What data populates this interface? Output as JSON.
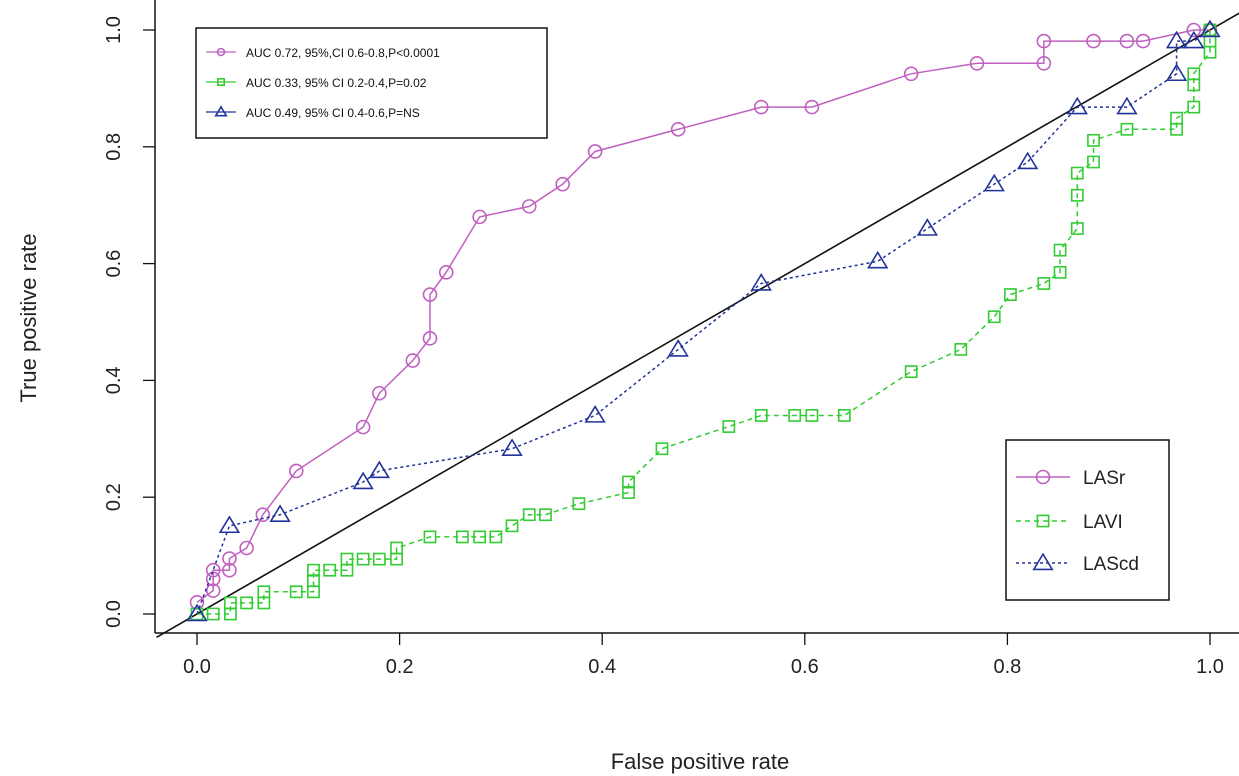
{
  "chart_data": {
    "type": "line",
    "title": "",
    "xlabel": "False positive rate",
    "ylabel": "True positive rate",
    "xlim": [
      0,
      1
    ],
    "ylim": [
      0,
      1
    ],
    "x_ticks": [
      "0.0",
      "0.2",
      "0.4",
      "0.6",
      "0.8",
      "1.0"
    ],
    "y_ticks": [
      "0.0",
      "0.2",
      "0.4",
      "0.6",
      "0.8",
      "1.0"
    ],
    "grid": false,
    "reference_line": {
      "x": [
        0,
        1
      ],
      "y": [
        0,
        1
      ],
      "color": "#111111"
    },
    "auc_box": {
      "placement": "top-left",
      "entries": [
        {
          "label": "AUC 0.72, 95%,CI 0.6-0.8,P<0.0001",
          "color": "#c060c0",
          "marker": "circle"
        },
        {
          "label": "AUC 0.33, 95% CI 0.2-0.4,P=0.02",
          "color": "#33cc33",
          "marker": "square"
        },
        {
          "label": "AUC 0.49, 95% CI 0.4-0.6,P=NS",
          "color": "#223399",
          "marker": "triangle"
        }
      ]
    },
    "legend": {
      "placement": "bottom-right",
      "entries": [
        {
          "label": "LASr",
          "color": "#c060c0",
          "marker": "circle",
          "dash": "solid"
        },
        {
          "label": "LAVI",
          "color": "#33cc33",
          "marker": "square",
          "dash": "dashed"
        },
        {
          "label": "LAScd",
          "color": "#223399",
          "marker": "triangle",
          "dash": "dotted"
        }
      ]
    },
    "series": [
      {
        "name": "LASr",
        "color": "#c060c0",
        "marker": "circle",
        "dash": "solid",
        "points": [
          [
            0,
            0.02
          ],
          [
            0.016,
            0.04
          ],
          [
            0.016,
            0.06
          ],
          [
            0.016,
            0.075
          ],
          [
            0.032,
            0.075
          ],
          [
            0.032,
            0.095
          ],
          [
            0.049,
            0.113
          ],
          [
            0.065,
            0.17
          ],
          [
            0.098,
            0.245
          ],
          [
            0.164,
            0.32
          ],
          [
            0.18,
            0.378
          ],
          [
            0.213,
            0.434
          ],
          [
            0.23,
            0.472
          ],
          [
            0.23,
            0.547
          ],
          [
            0.246,
            0.585
          ],
          [
            0.279,
            0.68
          ],
          [
            0.328,
            0.698
          ],
          [
            0.361,
            0.736
          ],
          [
            0.393,
            0.792
          ],
          [
            0.475,
            0.83
          ],
          [
            0.557,
            0.868
          ],
          [
            0.607,
            0.868
          ],
          [
            0.705,
            0.925
          ],
          [
            0.77,
            0.943
          ],
          [
            0.836,
            0.943
          ],
          [
            0.836,
            0.981
          ],
          [
            0.885,
            0.981
          ],
          [
            0.918,
            0.981
          ],
          [
            0.934,
            0.981
          ],
          [
            0.984,
            1.0
          ],
          [
            1.0,
            1.0
          ]
        ]
      },
      {
        "name": "LAVI",
        "color": "#33cc33",
        "marker": "square",
        "dash": "dashed",
        "points": [
          [
            0,
            0
          ],
          [
            0.016,
            0
          ],
          [
            0.033,
            0
          ],
          [
            0.033,
            0.019
          ],
          [
            0.049,
            0.019
          ],
          [
            0.066,
            0.019
          ],
          [
            0.066,
            0.038
          ],
          [
            0.098,
            0.038
          ],
          [
            0.115,
            0.038
          ],
          [
            0.115,
            0.057
          ],
          [
            0.115,
            0.075
          ],
          [
            0.131,
            0.075
          ],
          [
            0.148,
            0.075
          ],
          [
            0.148,
            0.094
          ],
          [
            0.164,
            0.094
          ],
          [
            0.18,
            0.094
          ],
          [
            0.197,
            0.094
          ],
          [
            0.197,
            0.113
          ],
          [
            0.23,
            0.132
          ],
          [
            0.262,
            0.132
          ],
          [
            0.279,
            0.132
          ],
          [
            0.295,
            0.132
          ],
          [
            0.311,
            0.151
          ],
          [
            0.328,
            0.17
          ],
          [
            0.344,
            0.17
          ],
          [
            0.377,
            0.189
          ],
          [
            0.426,
            0.208
          ],
          [
            0.426,
            0.226
          ],
          [
            0.459,
            0.283
          ],
          [
            0.525,
            0.321
          ],
          [
            0.557,
            0.34
          ],
          [
            0.59,
            0.34
          ],
          [
            0.607,
            0.34
          ],
          [
            0.639,
            0.34
          ],
          [
            0.705,
            0.415
          ],
          [
            0.754,
            0.453
          ],
          [
            0.787,
            0.509
          ],
          [
            0.803,
            0.547
          ],
          [
            0.836,
            0.566
          ],
          [
            0.852,
            0.585
          ],
          [
            0.852,
            0.623
          ],
          [
            0.869,
            0.66
          ],
          [
            0.869,
            0.717
          ],
          [
            0.869,
            0.755
          ],
          [
            0.885,
            0.774
          ],
          [
            0.885,
            0.811
          ],
          [
            0.918,
            0.83
          ],
          [
            0.967,
            0.83
          ],
          [
            0.967,
            0.849
          ],
          [
            0.984,
            0.868
          ],
          [
            0.984,
            0.906
          ],
          [
            0.984,
            0.925
          ],
          [
            1.0,
            0.962
          ],
          [
            1.0,
            0.981
          ],
          [
            1.0,
            1.0
          ]
        ]
      },
      {
        "name": "LAScd",
        "color": "#223399",
        "marker": "triangle",
        "dash": "dotted",
        "points": [
          [
            0,
            0
          ],
          [
            0.032,
            0.151
          ],
          [
            0.082,
            0.17
          ],
          [
            0.164,
            0.226
          ],
          [
            0.18,
            0.245
          ],
          [
            0.311,
            0.283
          ],
          [
            0.393,
            0.34
          ],
          [
            0.475,
            0.453
          ],
          [
            0.557,
            0.566
          ],
          [
            0.672,
            0.604
          ],
          [
            0.721,
            0.66
          ],
          [
            0.787,
            0.736
          ],
          [
            0.82,
            0.774
          ],
          [
            0.869,
            0.868
          ],
          [
            0.918,
            0.868
          ],
          [
            0.967,
            0.925
          ],
          [
            0.967,
            0.981
          ],
          [
            0.984,
            0.981
          ],
          [
            1.0,
            1.0
          ]
        ]
      }
    ]
  }
}
